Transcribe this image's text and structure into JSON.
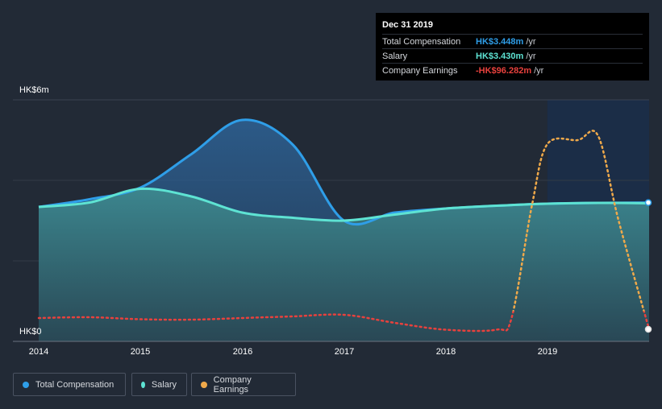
{
  "tooltip": {
    "date": "Dec 31 2019",
    "rows": [
      {
        "label": "Total Compensation",
        "value": "HK$3.448m",
        "unit": "/yr",
        "color": "#2f9ee8"
      },
      {
        "label": "Salary",
        "value": "HK$3.430m",
        "unit": "/yr",
        "color": "#5ee3d3"
      },
      {
        "label": "Company Earnings",
        "value": "-HK$96.282m",
        "unit": "/yr",
        "color": "#e8413d"
      }
    ]
  },
  "legend": [
    {
      "label": "Total Compensation",
      "color": "#2f9ee8"
    },
    {
      "label": "Salary",
      "color": "#5ee3d3"
    },
    {
      "label": "Company Earnings",
      "color": "#f0a94a"
    }
  ],
  "chart_data": {
    "type": "area",
    "ylabel_top": "HK$6m",
    "ylabel_bottom": "HK$0",
    "ylim": [
      0,
      6
    ],
    "x_ticks": [
      "2014",
      "2015",
      "2016",
      "2017",
      "2018",
      "2019"
    ],
    "highlight_region": [
      "2019",
      "2019-12-31"
    ],
    "series": [
      {
        "name": "Total Compensation",
        "color": "#2f9ee8",
        "x": [
          2014.0,
          2014.5,
          2015.0,
          2015.5,
          2016.0,
          2016.5,
          2017.0,
          2017.5,
          2018.0,
          2018.5,
          2019.0,
          2019.5,
          2020.0
        ],
        "values": [
          3.34,
          3.53,
          3.82,
          4.65,
          5.5,
          4.88,
          3.0,
          3.2,
          3.3,
          3.37,
          3.42,
          3.44,
          3.448
        ]
      },
      {
        "name": "Salary",
        "color": "#5ee3d3",
        "x": [
          2014.0,
          2014.5,
          2015.0,
          2015.5,
          2016.0,
          2016.5,
          2017.0,
          2017.5,
          2018.0,
          2018.5,
          2019.0,
          2019.5,
          2020.0
        ],
        "values": [
          3.34,
          3.45,
          3.79,
          3.6,
          3.2,
          3.07,
          3.0,
          3.15,
          3.3,
          3.37,
          3.42,
          3.44,
          3.43
        ]
      },
      {
        "name": "Company Earnings",
        "color": "#e8413d",
        "color_positive": "#f0a94a",
        "x": [
          2014.0,
          2014.5,
          2015.0,
          2015.5,
          2016.0,
          2016.5,
          2017.0,
          2017.5,
          2018.0,
          2018.5,
          2018.65,
          2018.85,
          2019.0,
          2019.3,
          2019.5,
          2019.7,
          2020.0
        ],
        "values": [
          0.58,
          0.6,
          0.55,
          0.54,
          0.58,
          0.62,
          0.66,
          0.46,
          0.29,
          0.29,
          0.6,
          3.4,
          4.9,
          5.0,
          5.1,
          3.0,
          0.3
        ]
      }
    ]
  }
}
